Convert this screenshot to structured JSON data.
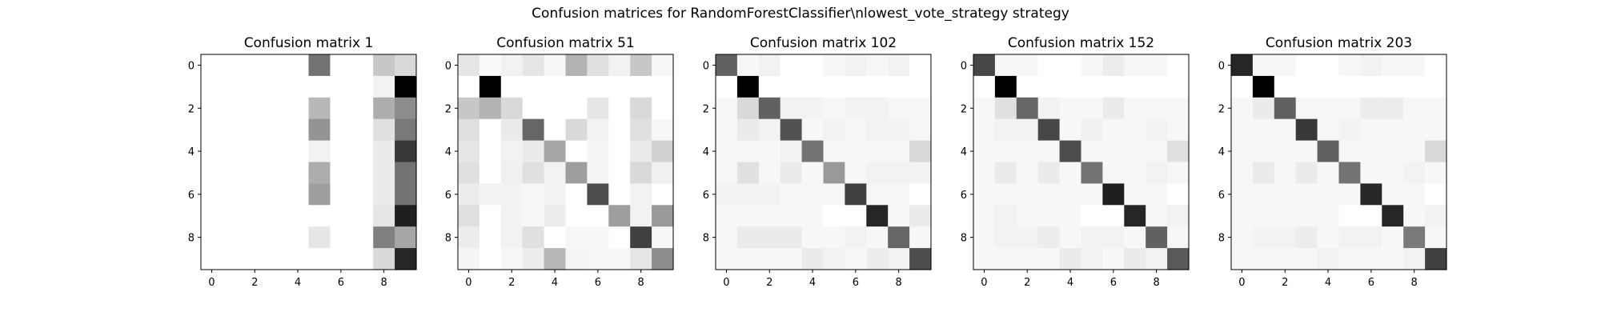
{
  "figure": {
    "title": "Confusion matrices for RandomForestClassifier\\nlowest_vote_strategy strategy"
  },
  "chart_data": [
    {
      "type": "heatmap",
      "title": "Confusion matrix 1",
      "xticks": [
        0,
        2,
        4,
        6,
        8
      ],
      "yticks": [
        0,
        2,
        4,
        6,
        8
      ],
      "colormap": "gray_r",
      "matrix": [
        [
          0,
          0,
          0,
          0,
          0,
          0.55,
          0,
          0,
          0.22,
          0.15
        ],
        [
          0,
          0,
          0,
          0,
          0,
          0,
          0,
          0,
          0.05,
          1.0
        ],
        [
          0,
          0,
          0,
          0,
          0,
          0.28,
          0,
          0,
          0.32,
          0.45
        ],
        [
          0,
          0,
          0,
          0,
          0,
          0.42,
          0,
          0,
          0.12,
          0.52
        ],
        [
          0,
          0,
          0,
          0,
          0,
          0.05,
          0,
          0,
          0.08,
          0.78
        ],
        [
          0,
          0,
          0,
          0,
          0,
          0.32,
          0,
          0,
          0.08,
          0.55
        ],
        [
          0,
          0,
          0,
          0,
          0,
          0.38,
          0,
          0,
          0.08,
          0.55
        ],
        [
          0,
          0,
          0,
          0,
          0,
          0,
          0,
          0,
          0.1,
          0.88
        ],
        [
          0,
          0,
          0,
          0,
          0,
          0.1,
          0,
          0,
          0.5,
          0.35
        ],
        [
          0,
          0,
          0,
          0,
          0,
          0,
          0,
          0,
          0.15,
          0.85
        ]
      ]
    },
    {
      "type": "heatmap",
      "title": "Confusion matrix 51",
      "xticks": [
        0,
        2,
        4,
        6,
        8
      ],
      "yticks": [
        0,
        2,
        4,
        6,
        8
      ],
      "colormap": "gray_r",
      "matrix": [
        [
          0.1,
          0.02,
          0.05,
          0.1,
          0.03,
          0.3,
          0.12,
          0.05,
          0.22,
          0.03
        ],
        [
          0,
          1.0,
          0,
          0,
          0,
          0,
          0,
          0,
          0,
          0
        ],
        [
          0.22,
          0.3,
          0.15,
          0,
          0,
          0,
          0.1,
          0,
          0.15,
          0
        ],
        [
          0.12,
          0,
          0.08,
          0.6,
          0,
          0.15,
          0.05,
          0,
          0.12,
          0.03
        ],
        [
          0.1,
          0,
          0.05,
          0.08,
          0.35,
          0,
          0.04,
          0,
          0.08,
          0.18
        ],
        [
          0.12,
          0,
          0.06,
          0.12,
          0.05,
          0.38,
          0.04,
          0,
          0.15,
          0.06
        ],
        [
          0.07,
          0.05,
          0.05,
          0.03,
          0.05,
          0,
          0.7,
          0,
          0.05,
          0
        ],
        [
          0.12,
          0,
          0.05,
          0.03,
          0.07,
          0,
          0,
          0.38,
          0.05,
          0.4
        ],
        [
          0.07,
          0,
          0.05,
          0.12,
          0,
          0.03,
          0.03,
          0,
          0.75,
          0.03
        ],
        [
          0.04,
          0,
          0.03,
          0.07,
          0.28,
          0.04,
          0.03,
          0.03,
          0.1,
          0.45
        ]
      ]
    },
    {
      "type": "heatmap",
      "title": "Confusion matrix 102",
      "xticks": [
        0,
        2,
        4,
        6,
        8
      ],
      "yticks": [
        0,
        2,
        4,
        6,
        8
      ],
      "colormap": "gray_r",
      "matrix": [
        [
          0.62,
          0.03,
          0.05,
          0,
          0,
          0.03,
          0.05,
          0.03,
          0.05,
          0
        ],
        [
          0,
          1.0,
          0,
          0,
          0,
          0,
          0,
          0,
          0,
          0
        ],
        [
          0.03,
          0.15,
          0.62,
          0.05,
          0.05,
          0.03,
          0.05,
          0.05,
          0.03,
          0.03
        ],
        [
          0.03,
          0.08,
          0.05,
          0.68,
          0.03,
          0.05,
          0.03,
          0.05,
          0.05,
          0.03
        ],
        [
          0.03,
          0.03,
          0.03,
          0.05,
          0.55,
          0.03,
          0.03,
          0.03,
          0.03,
          0.15
        ],
        [
          0.03,
          0.12,
          0.03,
          0.08,
          0.03,
          0.4,
          0.03,
          0.05,
          0.05,
          0.05
        ],
        [
          0.05,
          0.05,
          0.05,
          0.03,
          0.03,
          0.03,
          0.75,
          0.03,
          0.03,
          0
        ],
        [
          0.03,
          0.03,
          0.03,
          0.03,
          0.03,
          0,
          0,
          0.85,
          0.03,
          0.08
        ],
        [
          0.03,
          0.08,
          0.08,
          0.08,
          0.03,
          0.03,
          0.05,
          0.03,
          0.6,
          0.03
        ],
        [
          0.03,
          0.03,
          0.03,
          0.03,
          0.08,
          0.05,
          0.03,
          0.07,
          0.05,
          0.7
        ]
      ]
    },
    {
      "type": "heatmap",
      "title": "Confusion matrix 152",
      "xticks": [
        0,
        2,
        4,
        6,
        8
      ],
      "yticks": [
        0,
        2,
        4,
        6,
        8
      ],
      "colormap": "gray_r",
      "matrix": [
        [
          0.72,
          0.03,
          0.03,
          0,
          0,
          0.03,
          0.07,
          0.03,
          0.03,
          0
        ],
        [
          0,
          1.0,
          0,
          0,
          0,
          0,
          0,
          0,
          0,
          0
        ],
        [
          0.03,
          0.12,
          0.6,
          0.05,
          0.03,
          0.03,
          0.08,
          0.03,
          0.03,
          0.03
        ],
        [
          0.03,
          0.05,
          0.05,
          0.72,
          0.03,
          0.06,
          0.03,
          0.03,
          0.05,
          0.03
        ],
        [
          0.03,
          0.03,
          0.03,
          0.03,
          0.7,
          0.03,
          0.03,
          0.03,
          0.03,
          0.12
        ],
        [
          0.03,
          0.08,
          0.03,
          0.08,
          0.03,
          0.55,
          0.03,
          0.03,
          0.05,
          0.03
        ],
        [
          0.03,
          0.03,
          0.03,
          0.03,
          0.03,
          0.03,
          0.88,
          0.03,
          0.03,
          0
        ],
        [
          0.03,
          0.05,
          0.03,
          0.03,
          0.03,
          0,
          0,
          0.85,
          0.03,
          0.05
        ],
        [
          0.03,
          0.05,
          0.05,
          0.07,
          0.03,
          0.05,
          0.05,
          0.03,
          0.62,
          0.03
        ],
        [
          0.03,
          0.03,
          0.03,
          0.03,
          0.08,
          0.05,
          0.03,
          0.08,
          0.05,
          0.65
        ]
      ]
    },
    {
      "type": "heatmap",
      "title": "Confusion matrix 203",
      "xticks": [
        0,
        2,
        4,
        6,
        8
      ],
      "yticks": [
        0,
        2,
        4,
        6,
        8
      ],
      "colormap": "gray_r",
      "matrix": [
        [
          0.85,
          0.03,
          0.03,
          0,
          0,
          0.03,
          0.05,
          0.03,
          0.03,
          0
        ],
        [
          0,
          1.0,
          0,
          0,
          0,
          0,
          0,
          0,
          0,
          0
        ],
        [
          0.03,
          0.08,
          0.62,
          0.03,
          0.03,
          0.03,
          0.07,
          0.07,
          0.03,
          0.03
        ],
        [
          0.03,
          0.03,
          0.03,
          0.78,
          0.03,
          0.05,
          0.03,
          0.03,
          0.03,
          0.03
        ],
        [
          0.03,
          0.03,
          0.03,
          0.03,
          0.62,
          0.03,
          0.03,
          0.03,
          0.03,
          0.15
        ],
        [
          0.03,
          0.08,
          0.03,
          0.08,
          0.03,
          0.55,
          0.03,
          0.03,
          0.05,
          0.03
        ],
        [
          0.03,
          0.03,
          0.03,
          0.03,
          0.03,
          0.03,
          0.85,
          0.03,
          0.03,
          0
        ],
        [
          0.03,
          0.03,
          0.03,
          0.03,
          0.03,
          0,
          0,
          0.85,
          0.03,
          0.05
        ],
        [
          0.03,
          0.05,
          0.05,
          0.07,
          0.03,
          0.05,
          0.05,
          0.03,
          0.52,
          0.03
        ],
        [
          0.03,
          0.03,
          0.03,
          0.03,
          0.05,
          0.03,
          0.03,
          0.03,
          0.05,
          0.75
        ]
      ]
    }
  ]
}
